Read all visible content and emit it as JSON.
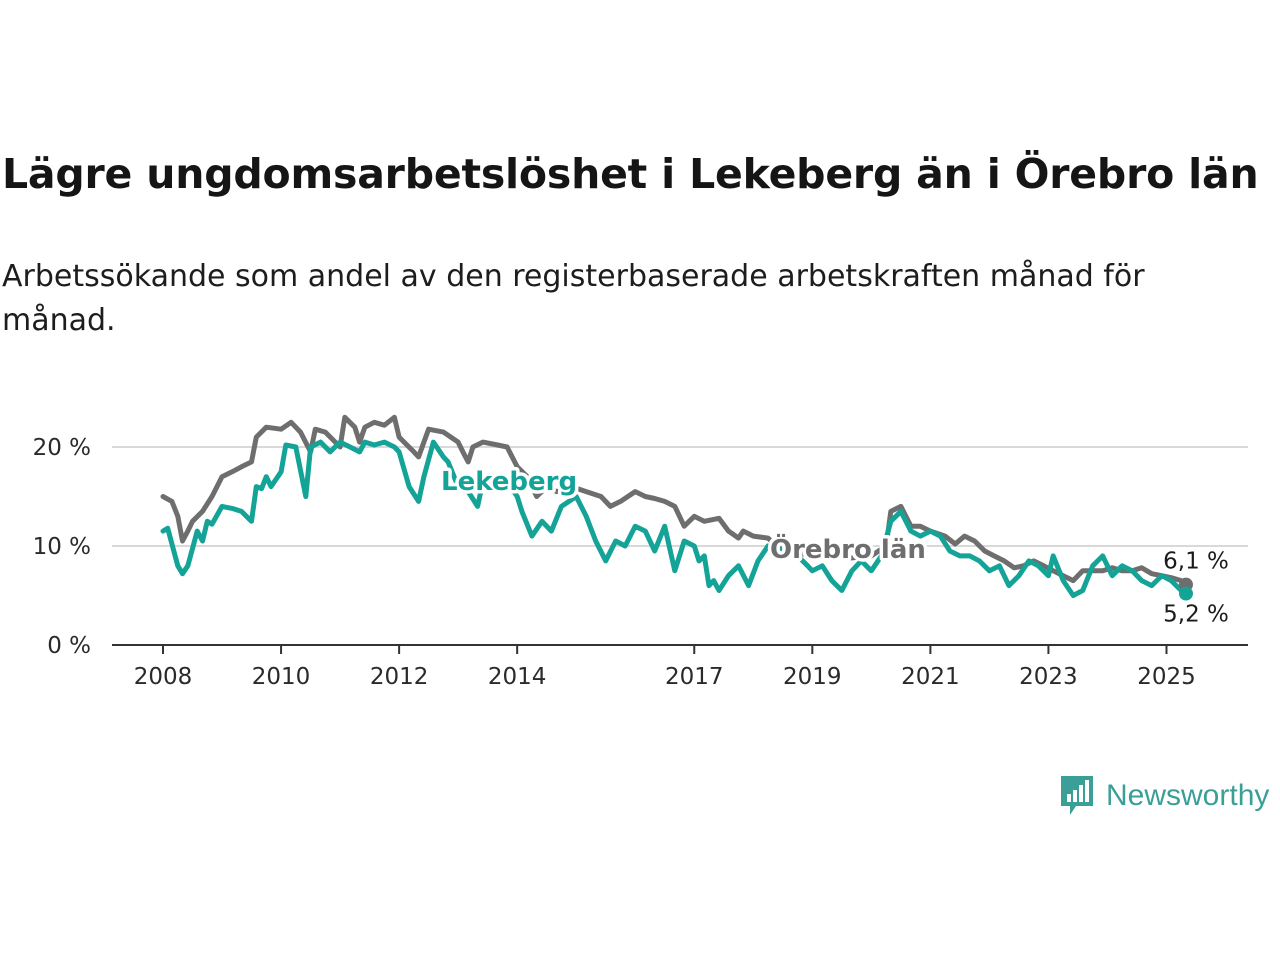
{
  "title": "Lägre ungdomsarbetslöshet i Lekeberg än i Örebro län",
  "subtitle": "Arbetssökande som andel av den registerbaserade arbetskraften månad för månad.",
  "brand": {
    "name": "Newsworthy",
    "color": "#3a9f97"
  },
  "chart_data": {
    "type": "line",
    "xlim": [
      2008,
      2025.5
    ],
    "ylim": [
      0,
      22
    ],
    "grid": true,
    "x_ticks": [
      {
        "value": 2008,
        "label": "2008"
      },
      {
        "value": 2010,
        "label": "2010"
      },
      {
        "value": 2012,
        "label": "2012"
      },
      {
        "value": 2014,
        "label": "2014"
      },
      {
        "value": 2017,
        "label": "2017"
      },
      {
        "value": 2019,
        "label": "2019"
      },
      {
        "value": 2021,
        "label": "2021"
      },
      {
        "value": 2023,
        "label": "2023"
      },
      {
        "value": 2025,
        "label": "2025"
      }
    ],
    "y_ticks": [
      {
        "value": 0,
        "label": "0 %"
      },
      {
        "value": 10,
        "label": "10 %"
      },
      {
        "value": 20,
        "label": "20 %"
      }
    ],
    "series": [
      {
        "name": "Örebro län",
        "color": "#6e6e6e",
        "end_label": "6,1 %",
        "points": [
          [
            2008.0,
            15.0
          ],
          [
            2008.15,
            14.5
          ],
          [
            2008.25,
            13.0
          ],
          [
            2008.33,
            10.5
          ],
          [
            2008.42,
            11.5
          ],
          [
            2008.5,
            12.5
          ],
          [
            2008.67,
            13.5
          ],
          [
            2008.83,
            15.0
          ],
          [
            2009.0,
            17.0
          ],
          [
            2009.17,
            17.5
          ],
          [
            2009.33,
            18.0
          ],
          [
            2009.5,
            18.5
          ],
          [
            2009.58,
            21.0
          ],
          [
            2009.75,
            22.0
          ],
          [
            2010.0,
            21.8
          ],
          [
            2010.17,
            22.5
          ],
          [
            2010.33,
            21.5
          ],
          [
            2010.5,
            19.5
          ],
          [
            2010.58,
            21.8
          ],
          [
            2010.75,
            21.5
          ],
          [
            2011.0,
            20.0
          ],
          [
            2011.08,
            23.0
          ],
          [
            2011.25,
            22.0
          ],
          [
            2011.33,
            20.5
          ],
          [
            2011.42,
            22.0
          ],
          [
            2011.58,
            22.5
          ],
          [
            2011.75,
            22.2
          ],
          [
            2011.92,
            23.0
          ],
          [
            2012.0,
            21.0
          ],
          [
            2012.25,
            19.5
          ],
          [
            2012.33,
            19.0
          ],
          [
            2012.42,
            20.5
          ],
          [
            2012.5,
            21.8
          ],
          [
            2012.75,
            21.5
          ],
          [
            2013.0,
            20.5
          ],
          [
            2013.08,
            19.5
          ],
          [
            2013.17,
            18.5
          ],
          [
            2013.25,
            20.0
          ],
          [
            2013.42,
            20.5
          ],
          [
            2013.67,
            20.2
          ],
          [
            2013.83,
            20.0
          ],
          [
            2014.0,
            18.0
          ],
          [
            2014.17,
            17.0
          ],
          [
            2014.33,
            15.0
          ],
          [
            2014.5,
            16.0
          ],
          [
            2014.67,
            15.5
          ],
          [
            2014.92,
            16.0
          ],
          [
            2015.17,
            15.5
          ],
          [
            2015.42,
            15.0
          ],
          [
            2015.58,
            14.0
          ],
          [
            2015.75,
            14.5
          ],
          [
            2016.0,
            15.5
          ],
          [
            2016.17,
            15.0
          ],
          [
            2016.33,
            14.8
          ],
          [
            2016.5,
            14.5
          ],
          [
            2016.67,
            14.0
          ],
          [
            2016.83,
            12.0
          ],
          [
            2017.0,
            13.0
          ],
          [
            2017.17,
            12.5
          ],
          [
            2017.42,
            12.8
          ],
          [
            2017.58,
            11.5
          ],
          [
            2017.75,
            10.8
          ],
          [
            2017.83,
            11.5
          ],
          [
            2018.0,
            11.0
          ],
          [
            2018.25,
            10.8
          ],
          [
            2018.5,
            9.5
          ],
          [
            2018.75,
            9.0
          ],
          [
            2019.0,
            9.5
          ],
          [
            2019.33,
            9.0
          ],
          [
            2019.67,
            8.8
          ],
          [
            2020.0,
            9.0
          ],
          [
            2020.25,
            10.0
          ],
          [
            2020.33,
            13.5
          ],
          [
            2020.5,
            14.0
          ],
          [
            2020.67,
            12.0
          ],
          [
            2020.83,
            12.0
          ],
          [
            2021.0,
            11.5
          ],
          [
            2021.25,
            11.0
          ],
          [
            2021.42,
            10.2
          ],
          [
            2021.58,
            11.0
          ],
          [
            2021.75,
            10.5
          ],
          [
            2021.92,
            9.5
          ],
          [
            2022.08,
            9.0
          ],
          [
            2022.25,
            8.5
          ],
          [
            2022.42,
            7.8
          ],
          [
            2022.58,
            8.0
          ],
          [
            2022.75,
            8.5
          ],
          [
            2022.92,
            8.0
          ],
          [
            2023.08,
            7.5
          ],
          [
            2023.25,
            7.0
          ],
          [
            2023.42,
            6.5
          ],
          [
            2023.58,
            7.5
          ],
          [
            2023.75,
            7.5
          ],
          [
            2023.92,
            7.5
          ],
          [
            2024.08,
            7.8
          ],
          [
            2024.25,
            7.5
          ],
          [
            2024.42,
            7.5
          ],
          [
            2024.58,
            7.8
          ],
          [
            2024.75,
            7.2
          ],
          [
            2024.92,
            7.0
          ],
          [
            2025.08,
            6.8
          ],
          [
            2025.25,
            6.5
          ],
          [
            2025.33,
            6.1
          ]
        ]
      },
      {
        "name": "Lekeberg",
        "color": "#13a397",
        "end_label": "5,2 %",
        "points": [
          [
            2008.0,
            11.5
          ],
          [
            2008.08,
            11.8
          ],
          [
            2008.17,
            9.8
          ],
          [
            2008.25,
            8.0
          ],
          [
            2008.33,
            7.2
          ],
          [
            2008.42,
            8.0
          ],
          [
            2008.58,
            11.5
          ],
          [
            2008.67,
            10.5
          ],
          [
            2008.75,
            12.5
          ],
          [
            2008.83,
            12.2
          ],
          [
            2009.0,
            14.0
          ],
          [
            2009.17,
            13.8
          ],
          [
            2009.33,
            13.5
          ],
          [
            2009.5,
            12.5
          ],
          [
            2009.58,
            16.0
          ],
          [
            2009.67,
            15.8
          ],
          [
            2009.75,
            17.0
          ],
          [
            2009.83,
            16.0
          ],
          [
            2010.0,
            17.5
          ],
          [
            2010.08,
            20.2
          ],
          [
            2010.25,
            20.0
          ],
          [
            2010.42,
            15.0
          ],
          [
            2010.5,
            20.0
          ],
          [
            2010.67,
            20.5
          ],
          [
            2010.83,
            19.5
          ],
          [
            2011.0,
            20.5
          ],
          [
            2011.17,
            20.0
          ],
          [
            2011.33,
            19.5
          ],
          [
            2011.42,
            20.5
          ],
          [
            2011.58,
            20.2
          ],
          [
            2011.75,
            20.5
          ],
          [
            2011.92,
            20.0
          ],
          [
            2012.0,
            19.5
          ],
          [
            2012.17,
            16.0
          ],
          [
            2012.33,
            14.5
          ],
          [
            2012.42,
            17.0
          ],
          [
            2012.58,
            20.5
          ],
          [
            2012.75,
            19.0
          ],
          [
            2012.83,
            18.5
          ],
          [
            2013.0,
            16.0
          ],
          [
            2013.17,
            15.5
          ],
          [
            2013.33,
            14.0
          ],
          [
            2013.42,
            16.5
          ],
          [
            2013.58,
            16.5
          ],
          [
            2013.83,
            16.5
          ],
          [
            2014.0,
            15.0
          ],
          [
            2014.08,
            13.5
          ],
          [
            2014.25,
            11.0
          ],
          [
            2014.42,
            12.5
          ],
          [
            2014.58,
            11.5
          ],
          [
            2014.75,
            14.0
          ],
          [
            2015.0,
            15.0
          ],
          [
            2015.17,
            13.0
          ],
          [
            2015.33,
            10.5
          ],
          [
            2015.5,
            8.5
          ],
          [
            2015.67,
            10.5
          ],
          [
            2015.83,
            10.0
          ],
          [
            2016.0,
            12.0
          ],
          [
            2016.17,
            11.5
          ],
          [
            2016.33,
            9.5
          ],
          [
            2016.5,
            12.0
          ],
          [
            2016.67,
            7.5
          ],
          [
            2016.83,
            10.5
          ],
          [
            2017.0,
            10.0
          ],
          [
            2017.08,
            8.5
          ],
          [
            2017.17,
            9.0
          ],
          [
            2017.25,
            6.0
          ],
          [
            2017.33,
            6.5
          ],
          [
            2017.42,
            5.5
          ],
          [
            2017.58,
            7.0
          ],
          [
            2017.75,
            8.0
          ],
          [
            2017.92,
            6.0
          ],
          [
            2018.08,
            8.5
          ],
          [
            2018.25,
            10.0
          ],
          [
            2018.42,
            9.5
          ],
          [
            2018.58,
            10.0
          ],
          [
            2018.75,
            9.0
          ],
          [
            2018.92,
            8.0
          ],
          [
            2019.0,
            7.5
          ],
          [
            2019.17,
            8.0
          ],
          [
            2019.33,
            6.5
          ],
          [
            2019.5,
            5.5
          ],
          [
            2019.67,
            7.5
          ],
          [
            2019.83,
            8.5
          ],
          [
            2020.0,
            7.5
          ],
          [
            2020.17,
            9.0
          ],
          [
            2020.33,
            12.5
          ],
          [
            2020.5,
            13.5
          ],
          [
            2020.67,
            11.5
          ],
          [
            2020.83,
            11.0
          ],
          [
            2021.0,
            11.5
          ],
          [
            2021.17,
            11.0
          ],
          [
            2021.33,
            9.5
          ],
          [
            2021.5,
            9.0
          ],
          [
            2021.67,
            9.0
          ],
          [
            2021.83,
            8.5
          ],
          [
            2022.0,
            7.5
          ],
          [
            2022.17,
            8.0
          ],
          [
            2022.33,
            6.0
          ],
          [
            2022.5,
            7.0
          ],
          [
            2022.67,
            8.5
          ],
          [
            2022.83,
            8.0
          ],
          [
            2023.0,
            7.0
          ],
          [
            2023.08,
            9.0
          ],
          [
            2023.25,
            6.5
          ],
          [
            2023.42,
            5.0
          ],
          [
            2023.58,
            5.5
          ],
          [
            2023.75,
            8.0
          ],
          [
            2023.92,
            9.0
          ],
          [
            2024.08,
            7.0
          ],
          [
            2024.25,
            8.0
          ],
          [
            2024.42,
            7.5
          ],
          [
            2024.58,
            6.5
          ],
          [
            2024.75,
            6.0
          ],
          [
            2024.92,
            7.0
          ],
          [
            2025.08,
            6.5
          ],
          [
            2025.25,
            5.5
          ],
          [
            2025.33,
            5.2
          ]
        ]
      }
    ]
  }
}
